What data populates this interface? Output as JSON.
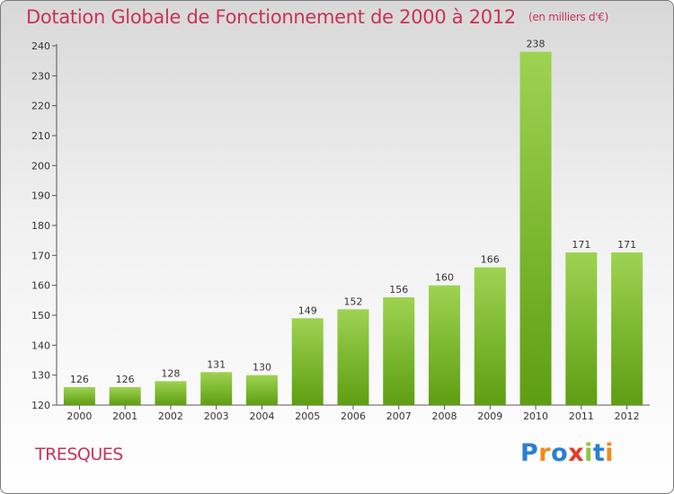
{
  "title": "Dotation Globale de Fonctionnement de 2000 à 2012",
  "subtitle": "(en milliers d'€)",
  "commune": "TRESQUES",
  "logo": {
    "letters": [
      "P",
      "r",
      "o",
      "x",
      "i",
      "t",
      "i"
    ],
    "colors": [
      "#2a7fd4",
      "#f08a1c",
      "#2a7fd4",
      "#e43b2c",
      "#8cc63f",
      "#2a7fd4",
      "#f08a1c"
    ]
  },
  "colors": {
    "bar_light": "#9ed352",
    "bar_dark": "#5e9e12",
    "title": "#c8325a"
  },
  "chart_data": {
    "type": "bar",
    "categories": [
      "2000",
      "2001",
      "2002",
      "2003",
      "2004",
      "2005",
      "2006",
      "2007",
      "2008",
      "2009",
      "2010",
      "2011",
      "2012"
    ],
    "values": [
      126,
      126,
      128,
      131,
      130,
      149,
      152,
      156,
      160,
      166,
      238,
      171,
      171
    ],
    "ylim": [
      120,
      240
    ],
    "yticks": [
      120,
      130,
      140,
      150,
      160,
      170,
      180,
      190,
      200,
      210,
      220,
      230,
      240
    ],
    "grid": false,
    "legend": "none"
  }
}
